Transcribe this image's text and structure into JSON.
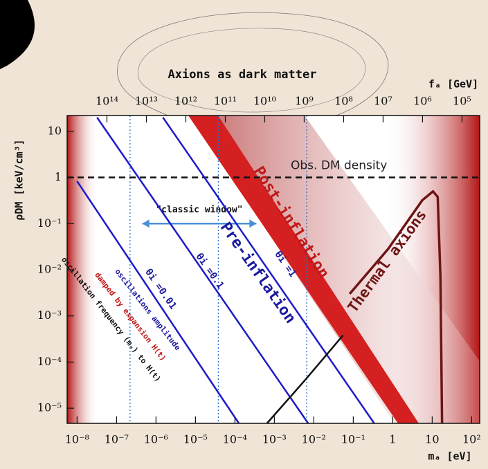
{
  "chart_data": {
    "type": "line",
    "title": "Axions as dark matter",
    "x_label": "mₐ [eV]",
    "y_label": "ρDM [keV/cm³]",
    "x2_label": "fₐ [GeV]",
    "log_x": true,
    "log_y": true,
    "xlim": [
      5.6e-09,
      160
    ],
    "ylim": [
      4.7e-06,
      22
    ],
    "x2lim": [
      1020000000000000.0,
      35600.0
    ],
    "xticks": [
      {
        "value": 1e-08,
        "label": "10⁻⁸"
      },
      {
        "value": 1e-07,
        "label": "10⁻⁷"
      },
      {
        "value": 1e-06,
        "label": "10⁻⁶"
      },
      {
        "value": 1e-05,
        "label": "10⁻⁵"
      },
      {
        "value": 0.0001,
        "label": "10⁻⁴"
      },
      {
        "value": 0.001,
        "label": "10⁻³"
      },
      {
        "value": 0.01,
        "label": "10⁻²"
      },
      {
        "value": 0.1,
        "label": "10⁻¹"
      },
      1,
      10,
      {
        "value": 100,
        "label": "10²"
      }
    ],
    "yticks": [
      {
        "value": 1e-05,
        "label": "10⁻⁵"
      },
      {
        "value": 0.0001,
        "label": "10⁻⁴"
      },
      {
        "value": 0.001,
        "label": "10⁻³"
      },
      {
        "value": 0.01,
        "label": "10⁻²"
      },
      {
        "value": 0.1,
        "label": "10⁻¹"
      },
      1,
      10
    ],
    "x2ticks": [
      {
        "value": 100000000000000.0,
        "label": "10¹⁴"
      },
      {
        "value": 10000000000000.0,
        "label": "10¹³"
      },
      {
        "value": 1000000000000.0,
        "label": "10¹²"
      },
      {
        "value": 100000000000.0,
        "label": "10¹¹"
      },
      {
        "value": 10000000000.0,
        "label": "10¹⁰"
      },
      {
        "value": 1000000000.0,
        "label": "10⁹"
      },
      {
        "value": 100000000.0,
        "label": "10⁸"
      },
      {
        "value": 10000000.0,
        "label": "10⁷"
      },
      {
        "value": 1000000.0,
        "label": "10⁶"
      },
      {
        "value": 100000.0,
        "label": "10⁵"
      }
    ],
    "series": [
      {
        "color": "#1c1cc8",
        "x": [
          1e-08,
          0.000126
        ],
        "values": [
          0.83,
          4.7e-06
        ]
      },
      {
        "color": "#1c1cc8",
        "x": [
          3.2e-08,
          0.0072
        ],
        "values": [
          20,
          4.7e-06
        ]
      },
      {
        "color": "#1c1cc8",
        "x": [
          1.5e-06,
          0.34
        ],
        "values": [
          20,
          4.7e-06
        ]
      },
      {
        "color": "#111111",
        "x": [
          0.00065,
          0.0059,
          0.055
        ],
        "values": [
          4.7e-06,
          4e-05,
          0.00038
        ]
      },
      {
        "name": "Thermal axions",
        "color": "#6e1414",
        "x": [
          0.081,
          0.76,
          5.6,
          10.5,
          13.8,
          16.2,
          17.8
        ],
        "values": [
          0.003,
          0.028,
          0.32,
          0.5,
          0.38,
          0.007,
          4.7e-06
        ]
      }
    ],
    "hline": {
      "value": 1,
      "label": "Obs. DM density"
    },
    "vlines": [
      2.2e-07,
      3.8e-05,
      0.0066
    ],
    "classic_window": {
      "label": "\"classic window\"",
      "x": [
        4.5e-07,
        0.00035
      ],
      "y": 0.1
    },
    "annotations": [
      "Post-inflation",
      "Pre-inflation",
      "θi =0.01",
      "θi =0.1",
      "θi =1",
      "oscillations amplitude",
      "damped by expansion H(t)",
      "oscillation frequency (mₐ) to H(t)"
    ]
  }
}
